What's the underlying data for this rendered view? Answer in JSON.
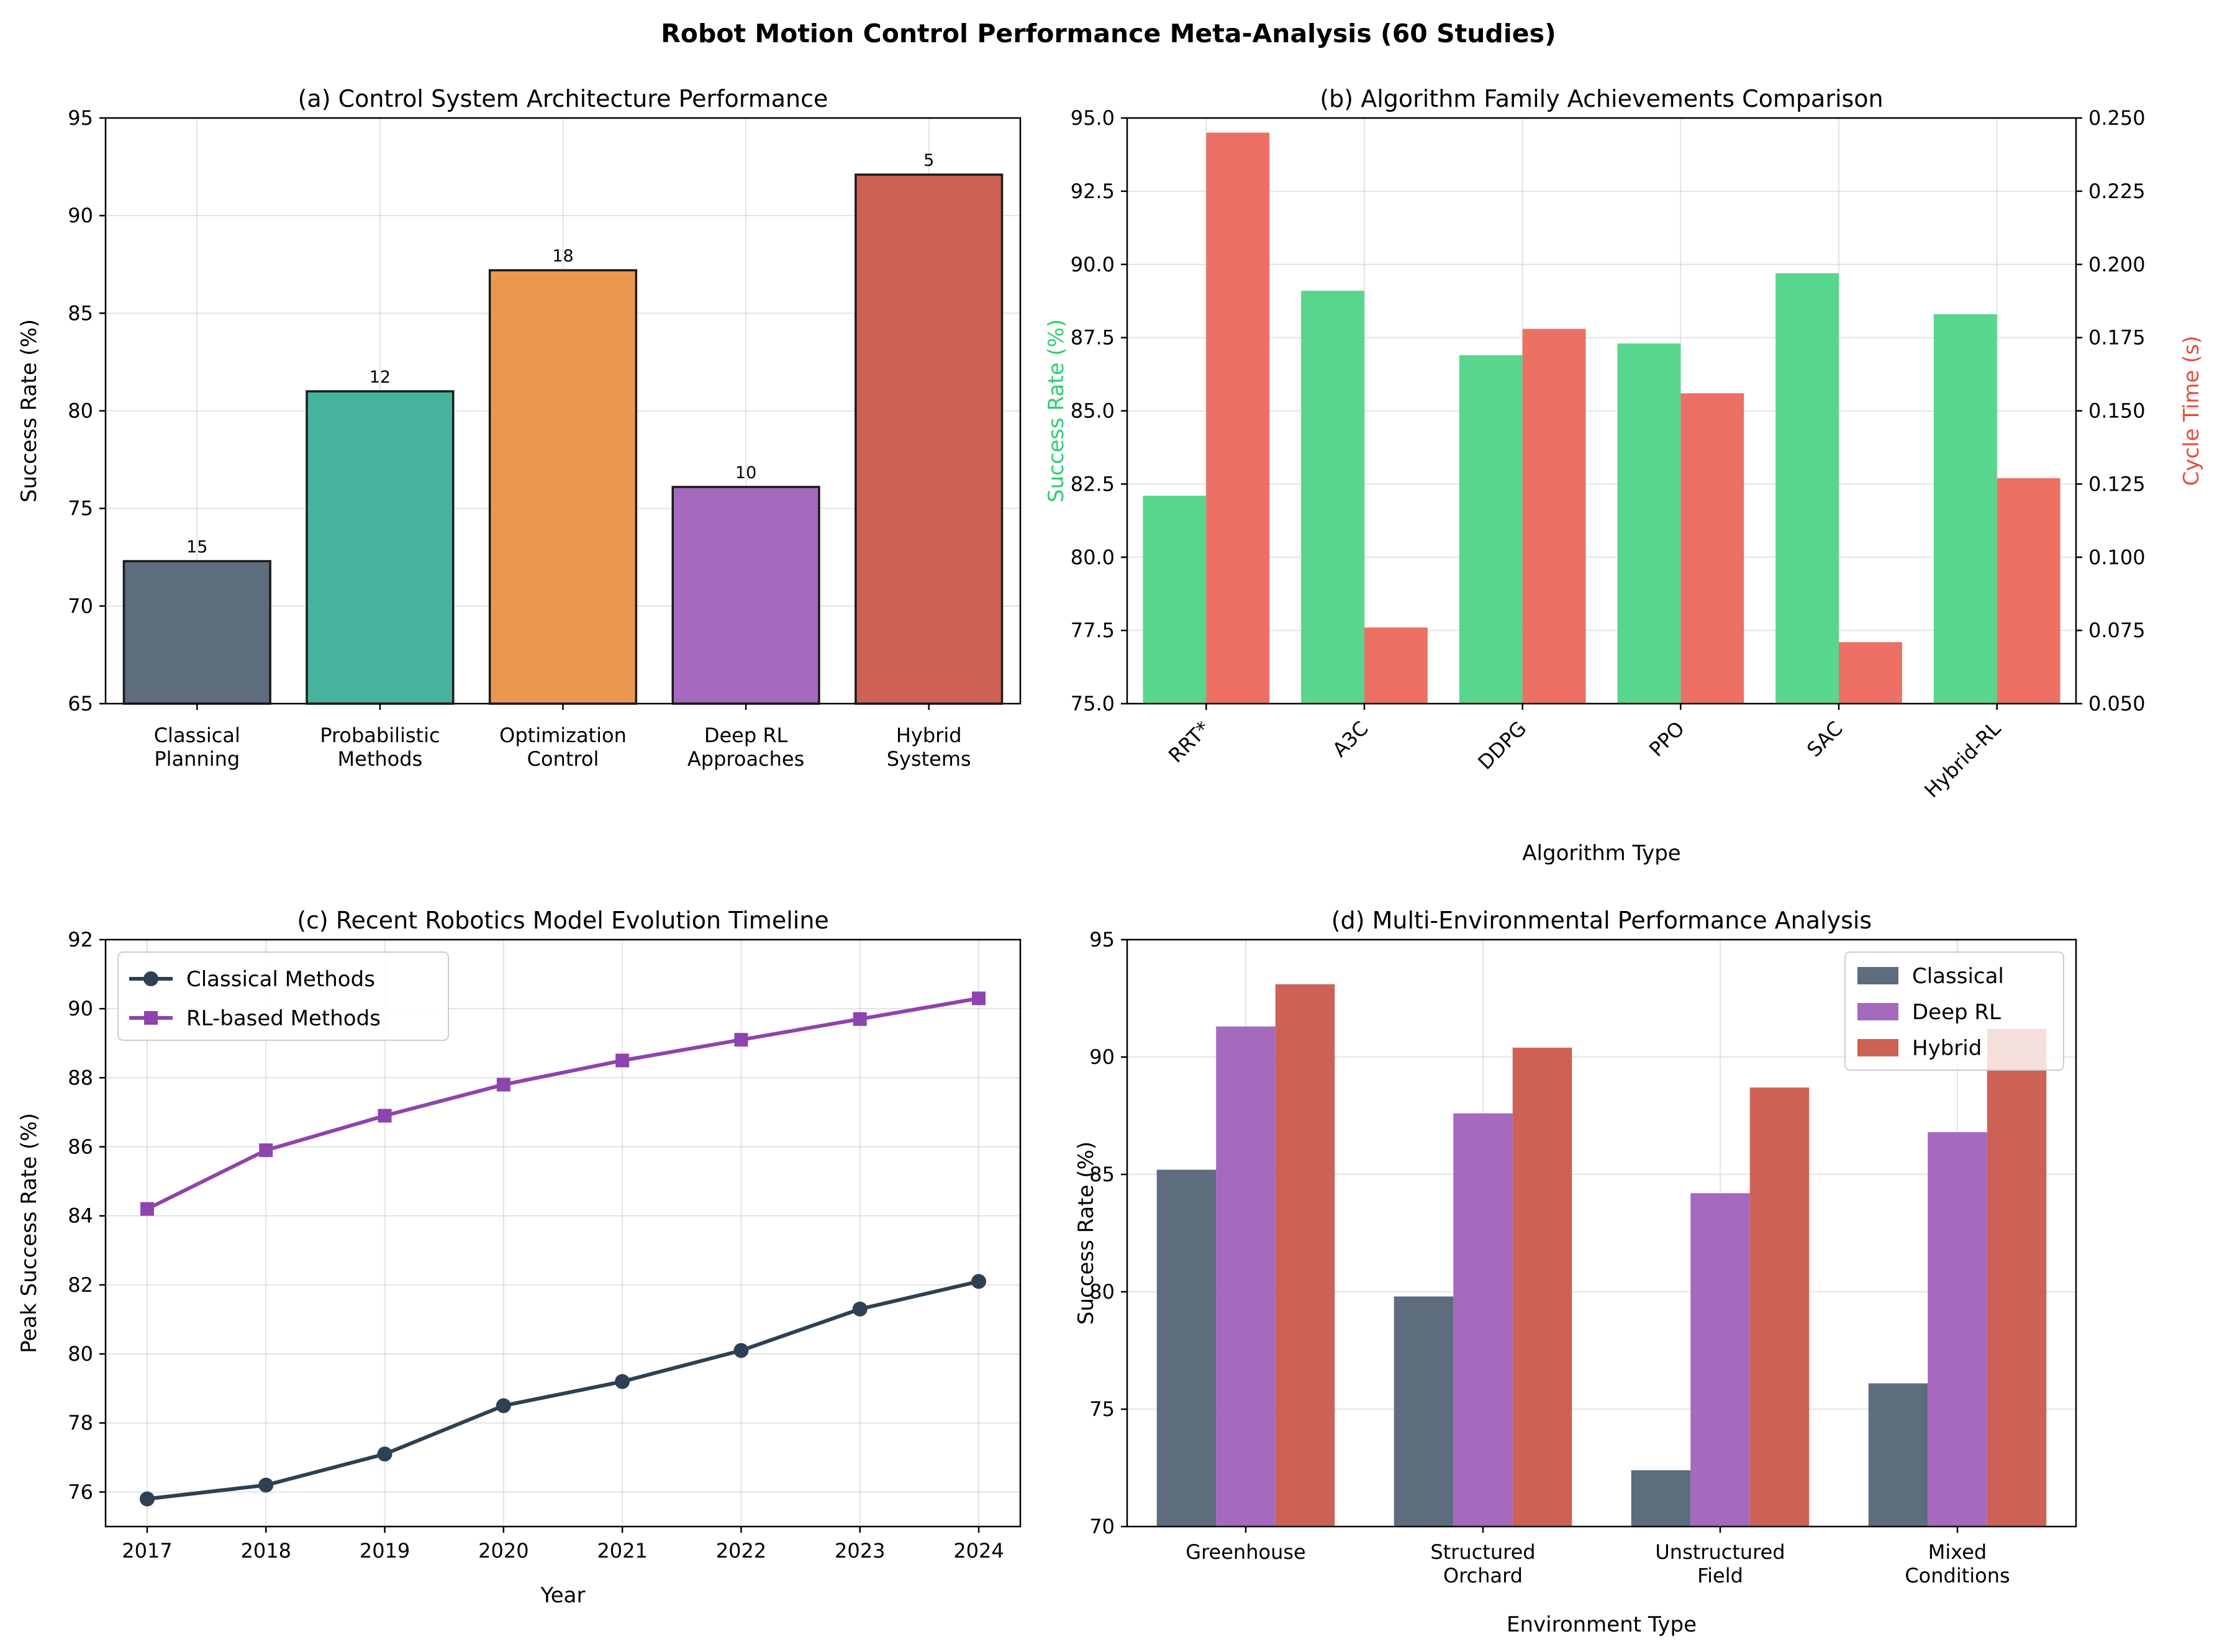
{
  "figure": {
    "title": "Robot Motion Control Performance Meta-Analysis (60 Studies)"
  },
  "chart_data": [
    {
      "id": "a",
      "type": "bar",
      "title": "(a) Control System Architecture Performance",
      "xlabel": "",
      "ylabel": "Success Rate (%)",
      "ylim": [
        65,
        95
      ],
      "yticks": [
        65,
        70,
        75,
        80,
        85,
        90,
        95
      ],
      "grid": true,
      "categories": [
        [
          "Classical",
          "Planning"
        ],
        [
          "Probabilistic",
          "Methods"
        ],
        [
          "Optimization",
          "Control"
        ],
        [
          "Deep RL",
          "Approaches"
        ],
        [
          "Hybrid",
          "Systems"
        ]
      ],
      "values": [
        72.3,
        81.0,
        87.2,
        76.1,
        92.1
      ],
      "data_labels": [
        "15",
        "12",
        "18",
        "10",
        "5"
      ],
      "colors": [
        "#5d6d7e",
        "#45b39d",
        "#eb984e",
        "#a569bd",
        "#cd6155"
      ]
    },
    {
      "id": "b",
      "type": "bar",
      "title": "(b) Algorithm Family Achievements Comparison",
      "xlabel": "Algorithm Type",
      "ylabel": "Success Rate (%)",
      "ylabel_right": "Cycle Time (s)",
      "ylim": [
        75,
        95
      ],
      "ylim_right": [
        0.05,
        0.25
      ],
      "yticks": [
        "75.0",
        "77.5",
        "80.0",
        "82.5",
        "85.0",
        "87.5",
        "90.0",
        "92.5",
        "95.0"
      ],
      "yticks_right": [
        "0.050",
        "0.075",
        "0.100",
        "0.125",
        "0.150",
        "0.175",
        "0.200",
        "0.225",
        "0.250"
      ],
      "grid": true,
      "categories": [
        "RRT*",
        "A3C",
        "DDPG",
        "PPO",
        "SAC",
        "Hybrid-RL"
      ],
      "series": [
        {
          "values": [
            82.1,
            89.1,
            86.9,
            87.3,
            89.7,
            88.3
          ],
          "color": "#58d68d",
          "axis": "left"
        },
        {
          "values": [
            0.245,
            0.076,
            0.178,
            0.156,
            0.071,
            0.127
          ],
          "color": "#ec7063",
          "axis": "right"
        }
      ],
      "left_label_color": "#2ecc71",
      "right_label_color": "#e74c3c"
    },
    {
      "id": "c",
      "type": "line",
      "title": "(c) Recent Robotics Model Evolution Timeline",
      "xlabel": "Year",
      "ylabel": "Peak Success Rate (%)",
      "ylim": [
        75,
        92
      ],
      "yticks": [
        76,
        78,
        80,
        82,
        84,
        86,
        88,
        90,
        92
      ],
      "grid": true,
      "legend": "top-left",
      "x": [
        2017,
        2018,
        2019,
        2020,
        2021,
        2022,
        2023,
        2024
      ],
      "series": [
        {
          "name": "Classical Methods",
          "values": [
            75.8,
            76.2,
            77.1,
            78.5,
            79.2,
            80.1,
            81.3,
            82.1
          ],
          "color": "#2e4053",
          "marker": "circle"
        },
        {
          "name": "RL-based Methods",
          "values": [
            84.2,
            85.9,
            86.9,
            87.8,
            88.5,
            89.1,
            89.7,
            90.3
          ],
          "color": "#8e44ad",
          "marker": "square"
        }
      ]
    },
    {
      "id": "d",
      "type": "bar",
      "title": "(d) Multi-Environmental Performance Analysis",
      "xlabel": "Environment Type",
      "ylabel": "Success Rate (%)",
      "ylim": [
        70,
        95
      ],
      "yticks": [
        70,
        75,
        80,
        85,
        90,
        95
      ],
      "grid": true,
      "legend": "top-right",
      "categories": [
        [
          "Greenhouse"
        ],
        [
          "Structured",
          "Orchard"
        ],
        [
          "Unstructured",
          "Field"
        ],
        [
          "Mixed",
          "Conditions"
        ]
      ],
      "series": [
        {
          "name": "Classical",
          "values": [
            85.2,
            79.8,
            72.4,
            76.1
          ],
          "color": "#5d6d7e"
        },
        {
          "name": "Deep RL",
          "values": [
            91.3,
            87.6,
            84.2,
            86.8
          ],
          "color": "#a569bd"
        },
        {
          "name": "Hybrid",
          "values": [
            93.1,
            90.4,
            88.7,
            91.2
          ],
          "color": "#cd6155"
        }
      ]
    }
  ]
}
